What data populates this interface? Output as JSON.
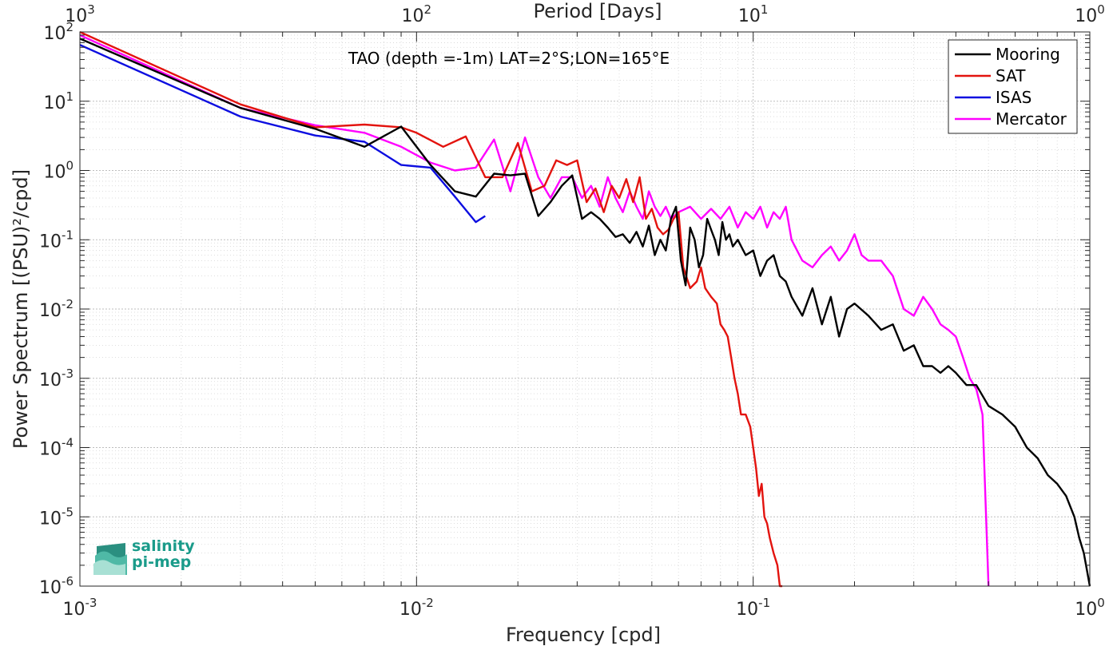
{
  "chart_data": {
    "type": "line",
    "title": "TAO (depth =-1m) LAT=2°S;LON=165°E",
    "xlabel": "Frequency [cpd]",
    "ylabel": "Power Spectrum [(PSU)²/cpd]",
    "top_xlabel": "Period [Days]",
    "xscale": "log",
    "yscale": "log",
    "xlim": [
      0.001,
      1
    ],
    "ylim": [
      1e-06,
      100
    ],
    "grid": true,
    "legend_position": "top-right",
    "x_ticks": [
      {
        "value": 0.001,
        "base": "10",
        "exp": "-3"
      },
      {
        "value": 0.01,
        "base": "10",
        "exp": "-2"
      },
      {
        "value": 0.1,
        "base": "10",
        "exp": "-1"
      },
      {
        "value": 1,
        "base": "10",
        "exp": "0"
      }
    ],
    "top_ticks": [
      {
        "value": 0.001,
        "base": "10",
        "exp": "3"
      },
      {
        "value": 0.01,
        "base": "10",
        "exp": "2"
      },
      {
        "value": 0.1,
        "base": "10",
        "exp": "1"
      },
      {
        "value": 1,
        "base": "10",
        "exp": "0"
      }
    ],
    "y_ticks": [
      {
        "value": 100,
        "base": "10",
        "exp": "2"
      },
      {
        "value": 10,
        "base": "10",
        "exp": "1"
      },
      {
        "value": 1,
        "base": "10",
        "exp": "0"
      },
      {
        "value": 0.1,
        "base": "10",
        "exp": "-1"
      },
      {
        "value": 0.01,
        "base": "10",
        "exp": "-2"
      },
      {
        "value": 0.001,
        "base": "10",
        "exp": "-3"
      },
      {
        "value": 0.0001,
        "base": "10",
        "exp": "-4"
      },
      {
        "value": 1e-05,
        "base": "10",
        "exp": "-5"
      },
      {
        "value": 1e-06,
        "base": "10",
        "exp": "-6"
      }
    ],
    "series": [
      {
        "name": "Mooring",
        "color": "#000000",
        "x": [
          0.001,
          0.003,
          0.005,
          0.007,
          0.009,
          0.011,
          0.013,
          0.015,
          0.017,
          0.019,
          0.021,
          0.023,
          0.025,
          0.027,
          0.029,
          0.031,
          0.033,
          0.035,
          0.037,
          0.039,
          0.041,
          0.043,
          0.045,
          0.047,
          0.049,
          0.051,
          0.053,
          0.055,
          0.057,
          0.059,
          0.061,
          0.063,
          0.065,
          0.067,
          0.069,
          0.071,
          0.073,
          0.075,
          0.077,
          0.079,
          0.081,
          0.083,
          0.085,
          0.087,
          0.09,
          0.095,
          0.1,
          0.105,
          0.11,
          0.115,
          0.12,
          0.125,
          0.13,
          0.14,
          0.15,
          0.16,
          0.17,
          0.18,
          0.19,
          0.2,
          0.22,
          0.24,
          0.26,
          0.28,
          0.3,
          0.32,
          0.34,
          0.36,
          0.38,
          0.4,
          0.43,
          0.46,
          0.5,
          0.55,
          0.6,
          0.65,
          0.7,
          0.75,
          0.8,
          0.85,
          0.9,
          0.93,
          0.96,
          1.0
        ],
        "y": [
          80,
          8,
          4,
          2.2,
          4.3,
          1.2,
          0.5,
          0.42,
          0.9,
          0.85,
          0.9,
          0.22,
          0.35,
          0.6,
          0.85,
          0.2,
          0.25,
          0.2,
          0.15,
          0.11,
          0.12,
          0.09,
          0.13,
          0.08,
          0.16,
          0.06,
          0.1,
          0.07,
          0.2,
          0.3,
          0.05,
          0.022,
          0.15,
          0.1,
          0.04,
          0.06,
          0.2,
          0.14,
          0.1,
          0.06,
          0.18,
          0.1,
          0.12,
          0.08,
          0.1,
          0.06,
          0.07,
          0.03,
          0.05,
          0.06,
          0.03,
          0.025,
          0.015,
          0.008,
          0.02,
          0.006,
          0.015,
          0.004,
          0.01,
          0.012,
          0.008,
          0.005,
          0.006,
          0.0025,
          0.003,
          0.0015,
          0.0015,
          0.0012,
          0.0015,
          0.0012,
          0.0008,
          0.0008,
          0.0004,
          0.0003,
          0.0002,
          0.0001,
          7e-05,
          4e-05,
          3e-05,
          2e-05,
          1e-05,
          5e-06,
          3e-06,
          1e-06
        ]
      },
      {
        "name": "SAT",
        "color": "#e3130e",
        "x": [
          0.001,
          0.003,
          0.005,
          0.007,
          0.009,
          0.01,
          0.012,
          0.014,
          0.016,
          0.018,
          0.02,
          0.022,
          0.024,
          0.026,
          0.028,
          0.03,
          0.032,
          0.034,
          0.036,
          0.038,
          0.04,
          0.042,
          0.044,
          0.046,
          0.048,
          0.05,
          0.052,
          0.054,
          0.056,
          0.058,
          0.06,
          0.062,
          0.065,
          0.068,
          0.07,
          0.072,
          0.075,
          0.078,
          0.08,
          0.082,
          0.084,
          0.086,
          0.088,
          0.09,
          0.092,
          0.095,
          0.098,
          0.1,
          0.102,
          0.104,
          0.106,
          0.108,
          0.11,
          0.112,
          0.115,
          0.118,
          0.12,
          0.122
        ],
        "y": [
          100,
          9,
          4.2,
          4.6,
          4.2,
          3.5,
          2.2,
          3.1,
          0.8,
          0.8,
          2.5,
          0.5,
          0.6,
          1.4,
          1.2,
          1.4,
          0.35,
          0.55,
          0.25,
          0.6,
          0.4,
          0.75,
          0.35,
          0.8,
          0.2,
          0.28,
          0.15,
          0.12,
          0.14,
          0.2,
          0.25,
          0.04,
          0.02,
          0.025,
          0.04,
          0.02,
          0.015,
          0.012,
          0.006,
          0.005,
          0.004,
          0.002,
          0.001,
          0.0006,
          0.0003,
          0.0003,
          0.0002,
          0.0001,
          5e-05,
          2e-05,
          3e-05,
          1e-05,
          8e-06,
          5e-06,
          3e-06,
          2e-06,
          1e-06,
          1e-06
        ]
      },
      {
        "name": "ISAS",
        "color": "#0d0ee0",
        "x": [
          0.001,
          0.003,
          0.005,
          0.007,
          0.009,
          0.011,
          0.013,
          0.015,
          0.016
        ],
        "y": [
          65,
          6,
          3.2,
          2.6,
          1.2,
          1.1,
          0.42,
          0.18,
          0.22
        ]
      },
      {
        "name": "Mercator",
        "color": "#ff00ff",
        "x": [
          0.001,
          0.003,
          0.005,
          0.007,
          0.009,
          0.011,
          0.013,
          0.015,
          0.017,
          0.019,
          0.021,
          0.023,
          0.025,
          0.027,
          0.029,
          0.031,
          0.033,
          0.035,
          0.037,
          0.039,
          0.041,
          0.043,
          0.045,
          0.047,
          0.049,
          0.051,
          0.053,
          0.055,
          0.057,
          0.06,
          0.065,
          0.07,
          0.075,
          0.08,
          0.085,
          0.09,
          0.095,
          0.1,
          0.105,
          0.11,
          0.115,
          0.12,
          0.125,
          0.13,
          0.14,
          0.15,
          0.16,
          0.17,
          0.18,
          0.19,
          0.2,
          0.21,
          0.22,
          0.24,
          0.26,
          0.28,
          0.3,
          0.32,
          0.34,
          0.36,
          0.38,
          0.4,
          0.42,
          0.44,
          0.46,
          0.48,
          0.5
        ],
        "y": [
          90,
          8,
          4.5,
          3.5,
          2.2,
          1.3,
          1.0,
          1.1,
          2.8,
          0.5,
          3.0,
          0.8,
          0.4,
          0.8,
          0.8,
          0.4,
          0.6,
          0.3,
          0.8,
          0.4,
          0.25,
          0.5,
          0.3,
          0.2,
          0.5,
          0.3,
          0.22,
          0.3,
          0.2,
          0.25,
          0.3,
          0.2,
          0.28,
          0.2,
          0.3,
          0.15,
          0.25,
          0.2,
          0.3,
          0.15,
          0.25,
          0.2,
          0.3,
          0.1,
          0.05,
          0.04,
          0.06,
          0.08,
          0.05,
          0.07,
          0.12,
          0.06,
          0.05,
          0.05,
          0.03,
          0.01,
          0.008,
          0.015,
          0.01,
          0.006,
          0.005,
          0.004,
          0.002,
          0.001,
          0.0007,
          0.0003,
          1e-06
        ]
      }
    ]
  },
  "logo": {
    "line1": "salinity",
    "line2": "pi-mep"
  }
}
